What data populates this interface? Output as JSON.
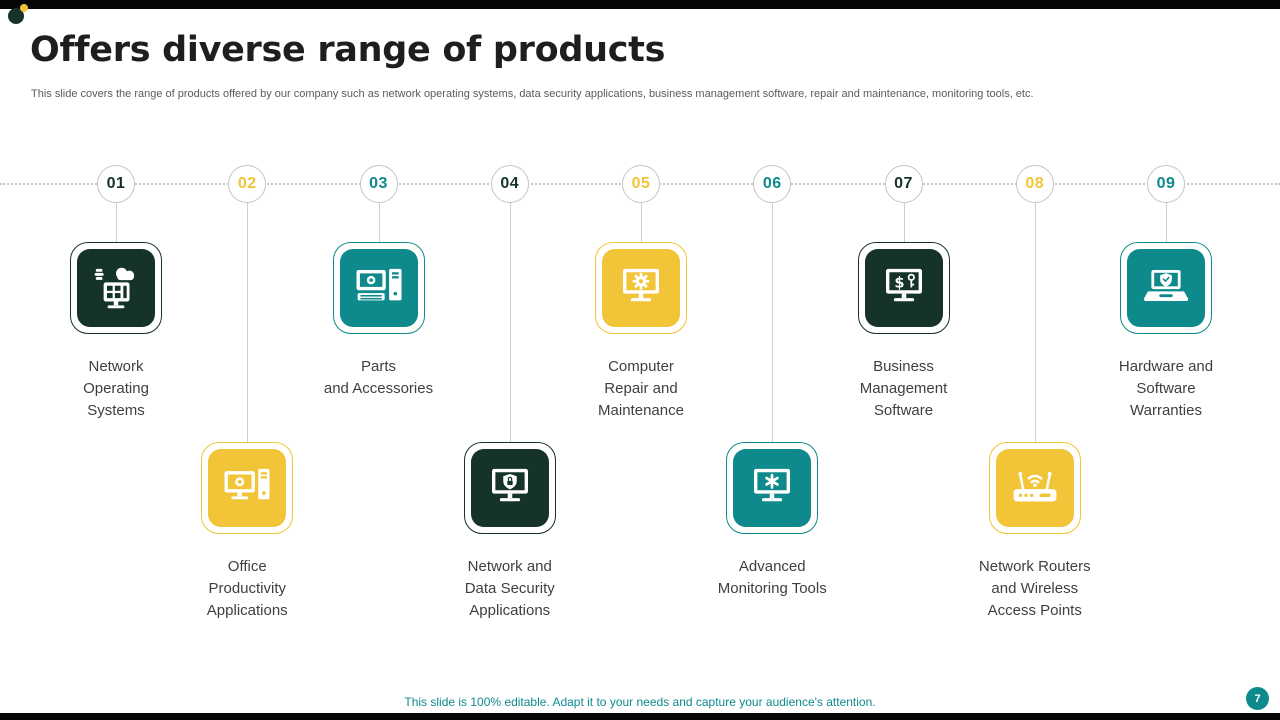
{
  "slide": {
    "title": "Offers diverse range of products",
    "subtitle": "This slide covers the range of products offered by our company such as network operating systems, data security applications, business management software, repair and maintenance, monitoring tools, etc.",
    "footer": "This slide is 100% editable. Adapt it to your needs and capture your audience's attention.",
    "page_number": "7"
  },
  "colors": {
    "dark": "#15332A",
    "yellow": "#F2C437",
    "teal": "#0E8A8D"
  },
  "items": [
    {
      "number": "01",
      "color": "dark",
      "position": "top",
      "icon": "network-os-icon",
      "label": "Network\nOperating\nSystems"
    },
    {
      "number": "02",
      "color": "yellow",
      "position": "bottom",
      "icon": "office-productivity-icon",
      "label": "Office\nProductivity\nApplications"
    },
    {
      "number": "03",
      "color": "teal",
      "position": "top",
      "icon": "parts-accessories-icon",
      "label": "Parts\nand Accessories"
    },
    {
      "number": "04",
      "color": "dark",
      "position": "bottom",
      "icon": "data-security-icon",
      "label": "Network and\nData Security\nApplications"
    },
    {
      "number": "05",
      "color": "yellow",
      "position": "top",
      "icon": "computer-repair-icon",
      "label": "Computer\nRepair and\nMaintenance"
    },
    {
      "number": "06",
      "color": "teal",
      "position": "bottom",
      "icon": "monitoring-tools-icon",
      "label": "Advanced\nMonitoring Tools"
    },
    {
      "number": "07",
      "color": "dark",
      "position": "top",
      "icon": "business-management-icon",
      "label": "Business\nManagement\nSoftware"
    },
    {
      "number": "08",
      "color": "yellow",
      "position": "bottom",
      "icon": "router-icon",
      "label": "Network Routers\nand Wireless\nAccess Points"
    },
    {
      "number": "09",
      "color": "teal",
      "position": "top",
      "icon": "warranty-icon",
      "label": "Hardware and\nSoftware\nWarranties"
    }
  ]
}
